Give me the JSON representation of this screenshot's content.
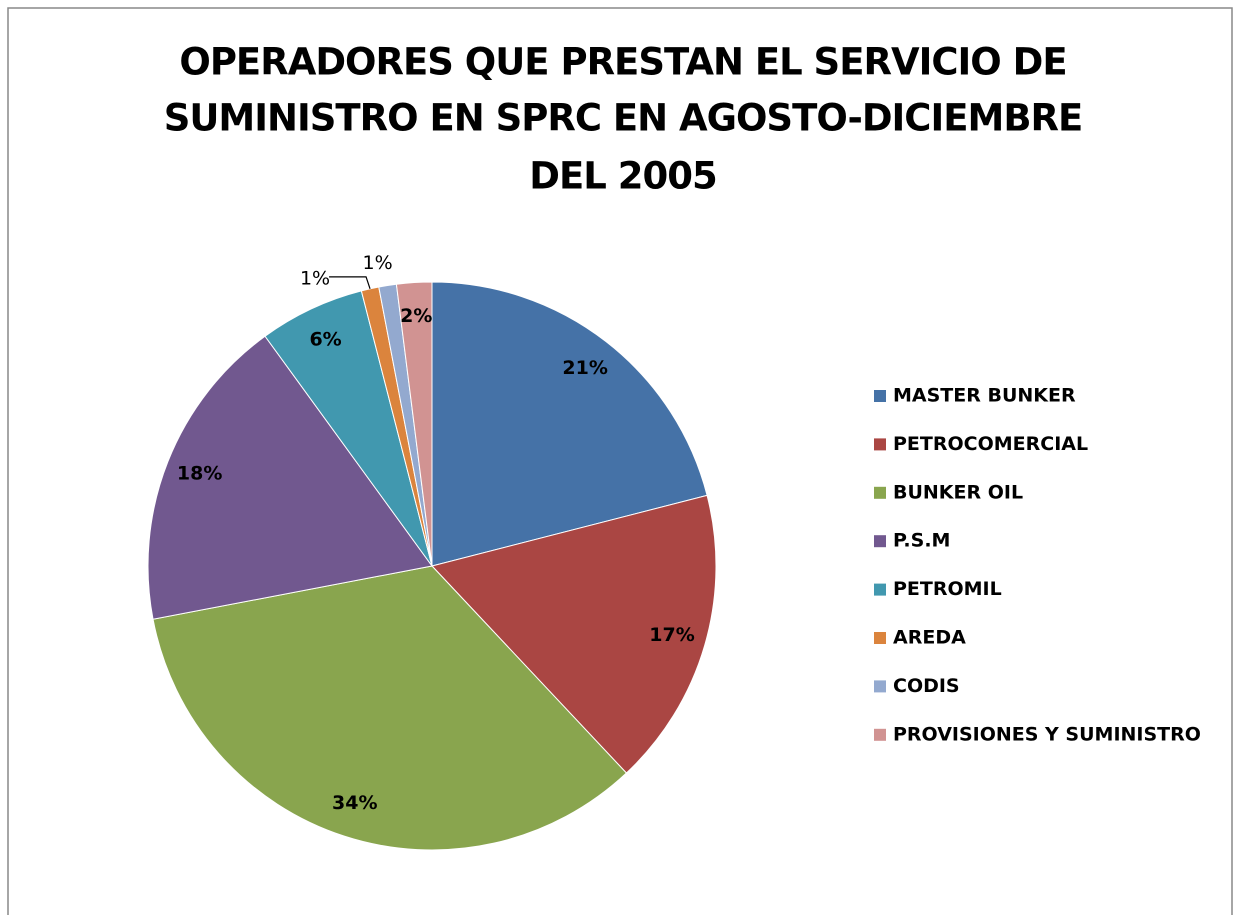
{
  "chart_data": {
    "type": "pie",
    "title": [
      "OPERADORES QUE PRESTAN EL SERVICIO  DE",
      "SUMINISTRO EN SPRC EN AGOSTO-DICIEMBRE",
      "DEL 2005"
    ],
    "categories": [
      "MASTER BUNKER",
      "PETROCOMERCIAL",
      "BUNKER OIL",
      "P.S.M",
      "PETROMIL",
      "AREDA",
      "CODIS",
      "PROVISIONES Y SUMINISTRO"
    ],
    "values": [
      21,
      17,
      34,
      18,
      6,
      1,
      1,
      2
    ],
    "value_labels": [
      "21%",
      "17%",
      "34%",
      "18%",
      "6%",
      "1%",
      "1%",
      "2%"
    ],
    "colors": [
      "#4572a7",
      "#aa4643",
      "#89a54e",
      "#71588f",
      "#4198af",
      "#db843d",
      "#93a9cf",
      "#d19392"
    ],
    "legend": "right"
  }
}
